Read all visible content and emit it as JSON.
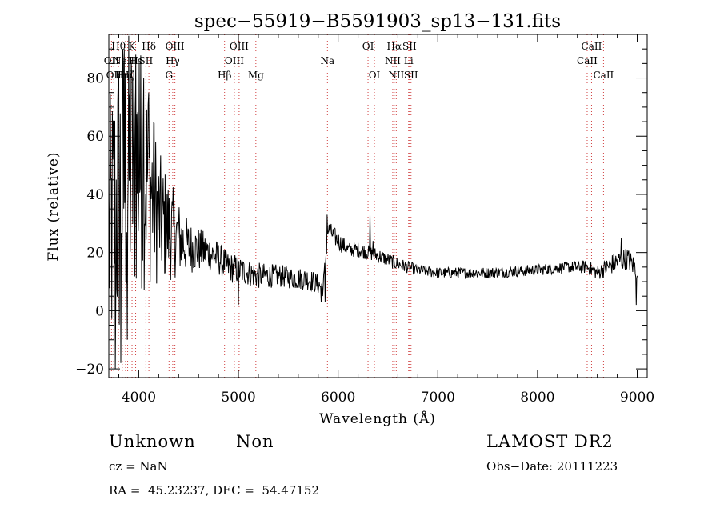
{
  "chart_data": {
    "type": "line",
    "title": "spec−55919−B5591903_sp13−131.fits",
    "xlabel": "Wavelength (Å)",
    "ylabel": "Flux (relative)",
    "xlim": [
      3700,
      9100
    ],
    "ylim": [
      -23,
      95
    ],
    "x_ticks": [
      4000,
      5000,
      6000,
      7000,
      8000,
      9000
    ],
    "x_tick_labels": [
      "4000",
      "5000",
      "6000",
      "7000",
      "8000",
      "9000"
    ],
    "y_ticks": [
      -20,
      0,
      20,
      40,
      60,
      80
    ],
    "y_tick_labels": [
      "−20",
      "0",
      "20",
      "40",
      "60",
      "80"
    ],
    "grid": false,
    "line_color": "#000000",
    "marker_color": "#d04040",
    "series": [
      {
        "spectrum_anchors": [
          [
            3700,
            25,
            35
          ],
          [
            3800,
            40,
            45
          ],
          [
            3900,
            48,
            40
          ],
          [
            4000,
            50,
            35
          ],
          [
            4100,
            45,
            28
          ],
          [
            4200,
            32,
            18
          ],
          [
            4300,
            28,
            14
          ],
          [
            4400,
            25,
            10
          ],
          [
            4500,
            22,
            7
          ],
          [
            4600,
            21,
            6
          ],
          [
            4700,
            20,
            5
          ],
          [
            4800,
            18,
            4.5
          ],
          [
            4900,
            15,
            4
          ],
          [
            5000,
            14,
            4
          ],
          [
            5100,
            13,
            3.5
          ],
          [
            5200,
            12,
            3.5
          ],
          [
            5400,
            12,
            3
          ],
          [
            5600,
            11,
            3
          ],
          [
            5700,
            11,
            3
          ],
          [
            5850,
            8,
            2.5
          ],
          [
            5900,
            28,
            2.5
          ],
          [
            6000,
            24,
            2.5
          ],
          [
            6100,
            21,
            2
          ],
          [
            6200,
            21,
            2
          ],
          [
            6400,
            19,
            2
          ],
          [
            6600,
            16,
            1.8
          ],
          [
            6800,
            14,
            1.5
          ],
          [
            7000,
            13,
            1.5
          ],
          [
            7500,
            13,
            1.5
          ],
          [
            8000,
            14,
            1.5
          ],
          [
            8300,
            15,
            1.5
          ],
          [
            8500,
            15,
            1.8
          ],
          [
            8600,
            13,
            2
          ],
          [
            8700,
            15,
            2.5
          ],
          [
            8800,
            17,
            3
          ],
          [
            8900,
            18,
            3
          ],
          [
            9000,
            14,
            3
          ]
        ],
        "spectrum_spikes": [
          [
            3765,
            -20
          ],
          [
            3820,
            -18
          ],
          [
            3855,
            90
          ],
          [
            3885,
            -10
          ],
          [
            3930,
            80
          ],
          [
            3970,
            88
          ],
          [
            4005,
            85
          ],
          [
            4050,
            80
          ],
          [
            4100,
            75
          ],
          [
            4150,
            65
          ],
          [
            5000,
            2
          ],
          [
            5830,
            3
          ],
          [
            5870,
            3
          ],
          [
            5890,
            33
          ],
          [
            6320,
            33
          ],
          [
            6350,
            24
          ],
          [
            8840,
            25
          ],
          [
            8990,
            2
          ]
        ]
      }
    ],
    "line_markers": [
      {
        "x": 3727,
        "labels": [
          {
            "text": "OII",
            "row": 2
          }
        ]
      },
      {
        "x": 3750,
        "labels": [
          {
            "text": "OII",
            "row": 3
          }
        ]
      },
      {
        "x": 3797,
        "labels": [
          {
            "text": "Hθ",
            "row": 1
          }
        ]
      },
      {
        "x": 3835,
        "labels": [
          {
            "text": "Hη",
            "row": 3
          }
        ]
      },
      {
        "x": 3868,
        "labels": [
          {
            "text": "NeIII",
            "row": 2
          }
        ]
      },
      {
        "x": 3889,
        "labels": [
          {
            "text": "Hζ",
            "row": 3
          }
        ]
      },
      {
        "x": 3933,
        "labels": [
          {
            "text": "K",
            "row": 1
          }
        ]
      },
      {
        "x": 3969,
        "labels": [
          {
            "text": "Hε",
            "row": 2
          }
        ]
      },
      {
        "x": 4072,
        "labels": [
          {
            "text": "SII",
            "row": 2
          }
        ]
      },
      {
        "x": 4102,
        "labels": [
          {
            "text": "Hδ",
            "row": 1
          }
        ]
      },
      {
        "x": 4304,
        "labels": [
          {
            "text": "G",
            "row": 3
          }
        ]
      },
      {
        "x": 4341,
        "labels": [
          {
            "text": "Hγ",
            "row": 2
          }
        ]
      },
      {
        "x": 4363,
        "labels": [
          {
            "text": "OIII",
            "row": 1
          }
        ]
      },
      {
        "x": 4861,
        "labels": [
          {
            "text": "Hβ",
            "row": 3
          }
        ]
      },
      {
        "x": 4959,
        "labels": [
          {
            "text": "OIII",
            "row": 2
          }
        ]
      },
      {
        "x": 5007,
        "labels": [
          {
            "text": "OIII",
            "row": 1
          }
        ]
      },
      {
        "x": 5175,
        "labels": [
          {
            "text": "Mg",
            "row": 3
          }
        ]
      },
      {
        "x": 5893,
        "labels": [
          {
            "text": "Na",
            "row": 2
          }
        ]
      },
      {
        "x": 6300,
        "labels": [
          {
            "text": "OI",
            "row": 1
          }
        ]
      },
      {
        "x": 6364,
        "labels": [
          {
            "text": "OI",
            "row": 3
          }
        ]
      },
      {
        "x": 6548,
        "labels": [
          {
            "text": "NII",
            "row": 2
          }
        ]
      },
      {
        "x": 6563,
        "labels": [
          {
            "text": "Hα",
            "row": 1
          }
        ]
      },
      {
        "x": 6583,
        "labels": [
          {
            "text": "NII",
            "row": 3
          }
        ]
      },
      {
        "x": 6707,
        "labels": [
          {
            "text": "Li",
            "row": 2
          }
        ]
      },
      {
        "x": 6716,
        "labels": [
          {
            "text": "SII",
            "row": 1
          }
        ]
      },
      {
        "x": 6731,
        "labels": [
          {
            "text": "SII",
            "row": 3
          }
        ]
      },
      {
        "x": 8498,
        "labels": [
          {
            "text": "CaII",
            "row": 2
          }
        ]
      },
      {
        "x": 8542,
        "labels": [
          {
            "text": "CaII",
            "row": 1
          }
        ]
      },
      {
        "x": 8662,
        "labels": [
          {
            "text": "CaII",
            "row": 3
          }
        ]
      }
    ]
  },
  "footer": {
    "class_label": "Unknown",
    "subclass_label": "Non",
    "survey_label": "LAMOST DR2",
    "cz_text": "cz = NaN",
    "obs_date_text": "Obs−Date: 20111223",
    "coords_text": "RA =  45.23237, DEC =  54.47152"
  }
}
